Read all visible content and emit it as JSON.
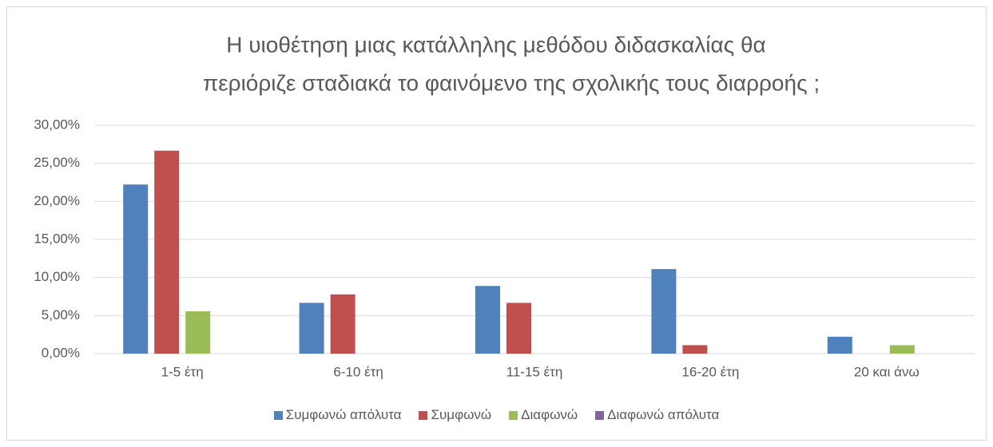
{
  "chart_data": {
    "type": "bar",
    "title": [
      "Η υιοθέτηση μιας κατάλληλης μεθόδου διδασκαλίας θα",
      "περιόριζε σταδιακά το φαινόμενο της σχολικής τους διαρροής ;"
    ],
    "categories": [
      "1-5 έτη",
      "6-10 έτη",
      "11-15 έτη",
      "16-20 έτη",
      "20 και άνω"
    ],
    "series": [
      {
        "name": "Συμφωνώ απόλυτα",
        "color": "#4f81bd",
        "values": [
          22.22,
          6.67,
          8.89,
          11.11,
          2.22
        ]
      },
      {
        "name": "Συμφωνώ",
        "color": "#c0504d",
        "values": [
          26.67,
          7.78,
          6.67,
          1.11,
          0
        ]
      },
      {
        "name": "Διαφωνώ",
        "color": "#9bbb59",
        "values": [
          5.56,
          0,
          0,
          0,
          1.11
        ]
      },
      {
        "name": "Διαφωνώ απόλυτα",
        "color": "#8064a2",
        "values": [
          0,
          0,
          0,
          0,
          0
        ]
      }
    ],
    "ylim": [
      0,
      30
    ],
    "yticks": [
      {
        "value": 0,
        "label": "0,00%"
      },
      {
        "value": 5,
        "label": "5,00%"
      },
      {
        "value": 10,
        "label": "10,00%"
      },
      {
        "value": 15,
        "label": "15,00%"
      },
      {
        "value": 20,
        "label": "20,00%"
      },
      {
        "value": 25,
        "label": "25,00%"
      },
      {
        "value": 30,
        "label": "30,00%"
      }
    ],
    "grid": true,
    "legend": "bottom"
  }
}
